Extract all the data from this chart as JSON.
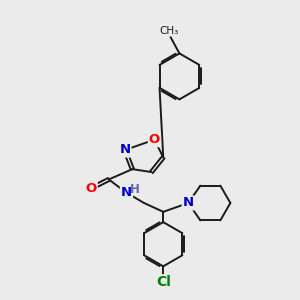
{
  "background_color": "#ebebeb",
  "bond_color": "#1a1a1a",
  "bond_width": 1.4,
  "atom_colors": {
    "O": "#ff0000",
    "N": "#0000cc",
    "Cl": "#008000",
    "H": "#6666aa"
  },
  "font_size_atom": 9.5,
  "dbl_off": 0.055
}
